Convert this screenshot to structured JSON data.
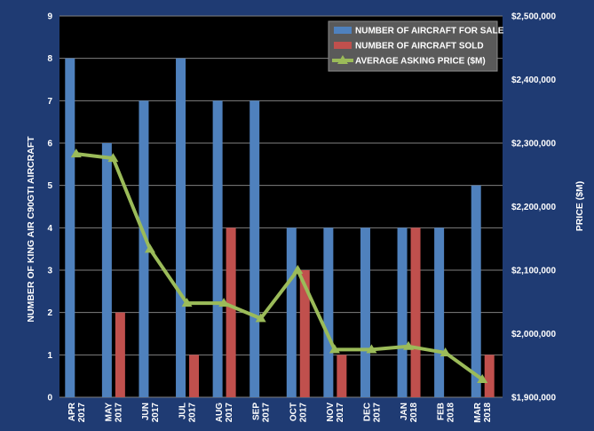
{
  "chart_data": {
    "type": "bar",
    "categories": [
      [
        "APR",
        "2017"
      ],
      [
        "MAY",
        "2017"
      ],
      [
        "JUN",
        "2017"
      ],
      [
        "JUL",
        "2017"
      ],
      [
        "AUG",
        "2017"
      ],
      [
        "SEP",
        "2017"
      ],
      [
        "OCT",
        "2017"
      ],
      [
        "NOV",
        "2017"
      ],
      [
        "DEC",
        "2017"
      ],
      [
        "JAN",
        "2018"
      ],
      [
        "FEB",
        "2018"
      ],
      [
        "MAR",
        "2018"
      ]
    ],
    "series": [
      {
        "name": "NUMBER OF AIRCRAFT FOR SALE",
        "type": "bar",
        "axis": "left",
        "color": "#4f81bd",
        "values": [
          8,
          6,
          7,
          8,
          7,
          7,
          4,
          4,
          4,
          4,
          4,
          5
        ]
      },
      {
        "name": "NUMBER OF AIRCRAFT SOLD",
        "type": "bar",
        "axis": "left",
        "color": "#c0504d",
        "values": [
          0,
          2,
          0,
          1,
          4,
          0,
          3,
          1,
          0,
          4,
          0,
          1
        ]
      },
      {
        "name": "AVERAGE ASKING PRICE ($M)",
        "type": "line",
        "axis": "right",
        "color": "#9bbb59",
        "marker": "triangle",
        "values": [
          2283000,
          2276000,
          2133000,
          2048000,
          2048000,
          2024000,
          2100000,
          1975000,
          1975000,
          1980000,
          1970000,
          1928000
        ]
      }
    ],
    "ylabel_left": "NUMBER OF KING AIR C90GTI AIRCRAFT",
    "ylabel_right": "PRICE ($M)",
    "ylim_left": [
      0,
      9
    ],
    "ylim_right": [
      1900000,
      2500000
    ],
    "yticks_left": [
      "0",
      "1",
      "2",
      "3",
      "4",
      "5",
      "6",
      "7",
      "8",
      "9"
    ],
    "yticks_right": [
      "$1,900,000",
      "$2,000,000",
      "$2,100,000",
      "$2,200,000",
      "$2,300,000",
      "$2,400,000",
      "$2,500,000"
    ],
    "grid": true,
    "legend_position": "top-right",
    "colors": {
      "frame": "#1f3b73",
      "plot_background": "#000000",
      "gridline": "#7f7f7f",
      "text": "#ffffff"
    }
  }
}
